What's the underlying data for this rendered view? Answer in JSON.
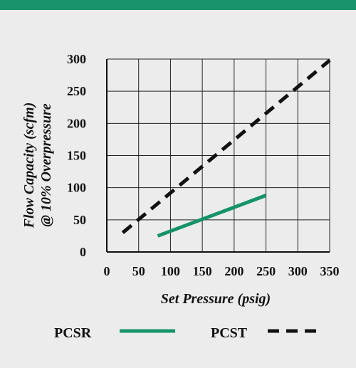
{
  "chart_data": {
    "type": "line",
    "xlabel": "Set Pressure (psig)",
    "ylabel_line1": "Flow Capacity (scfm)",
    "ylabel_line2": "@ 10% Overpressure",
    "xlim": [
      0,
      350
    ],
    "ylim": [
      0,
      300
    ],
    "x_ticks": [
      0,
      50,
      100,
      150,
      200,
      250,
      300,
      350
    ],
    "y_ticks": [
      0,
      50,
      100,
      150,
      200,
      250,
      300
    ],
    "grid": true,
    "legend_placement": "bottom",
    "series": [
      {
        "name": "PCSR",
        "style": "solid",
        "color": "#16936a",
        "x": [
          80,
          250
        ],
        "y": [
          25,
          88
        ]
      },
      {
        "name": "PCST",
        "style": "dashed",
        "color": "#111111",
        "x": [
          25,
          350
        ],
        "y": [
          30,
          298
        ]
      }
    ]
  }
}
